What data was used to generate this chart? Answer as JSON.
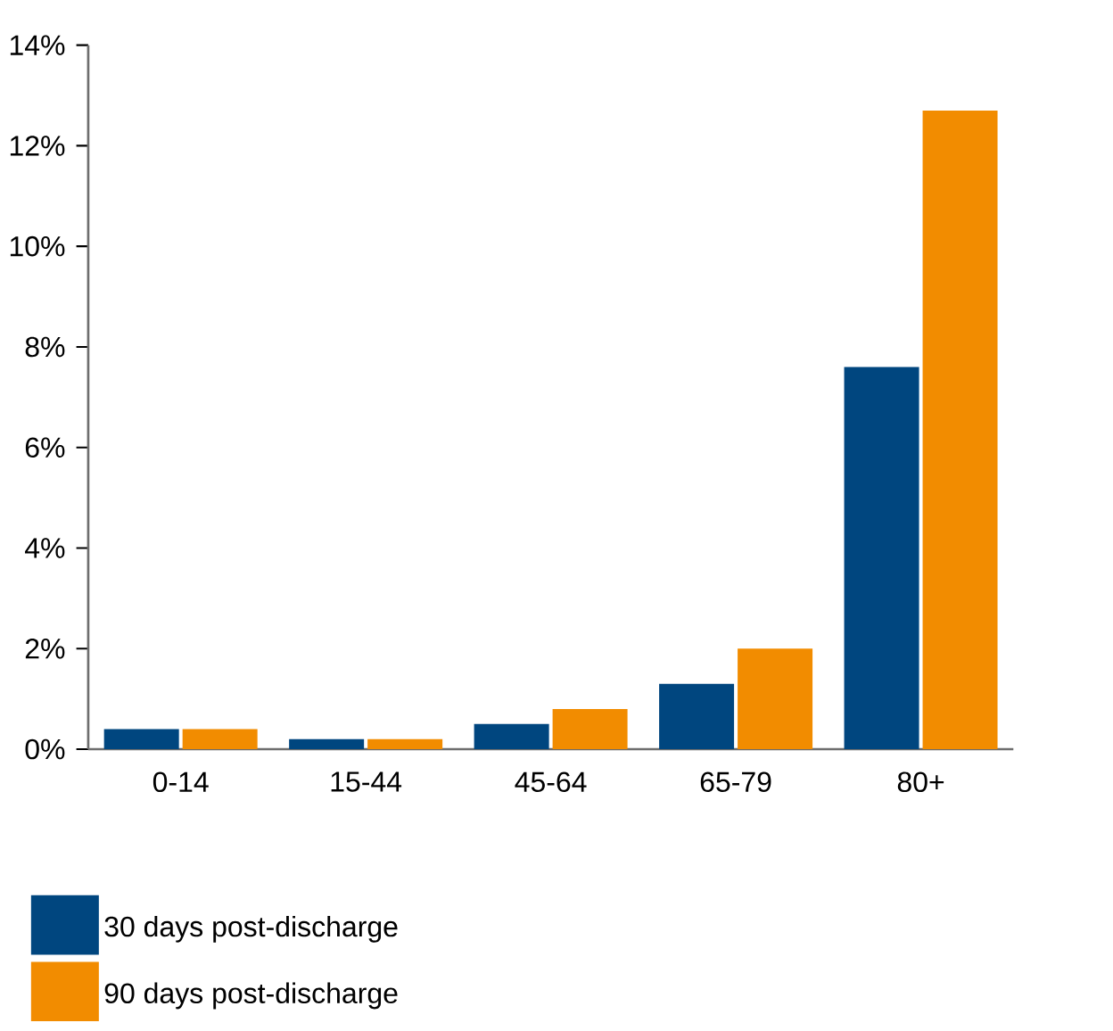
{
  "chart_data": {
    "type": "bar",
    "categories": [
      "0-14",
      "15-44",
      "45-64",
      "65-79",
      "80+"
    ],
    "series": [
      {
        "name": "30 days post-discharge",
        "color": "#00467f",
        "values": [
          0.4,
          0.2,
          0.5,
          1.3,
          7.6
        ]
      },
      {
        "name": "90 days post-discharge",
        "color": "#f28c00",
        "values": [
          0.4,
          0.2,
          0.8,
          2.0,
          12.7
        ]
      }
    ],
    "ylim": [
      0,
      14
    ],
    "yticks": [
      {
        "value": 0,
        "label": "0%"
      },
      {
        "value": 2,
        "label": "2%"
      },
      {
        "value": 4,
        "label": "4%"
      },
      {
        "value": 6,
        "label": "6%"
      },
      {
        "value": 8,
        "label": "8%"
      },
      {
        "value": 10,
        "label": "10%"
      },
      {
        "value": 12,
        "label": "12%"
      },
      {
        "value": 14,
        "label": "14%"
      }
    ],
    "legend": "bottom left",
    "grid": false
  }
}
